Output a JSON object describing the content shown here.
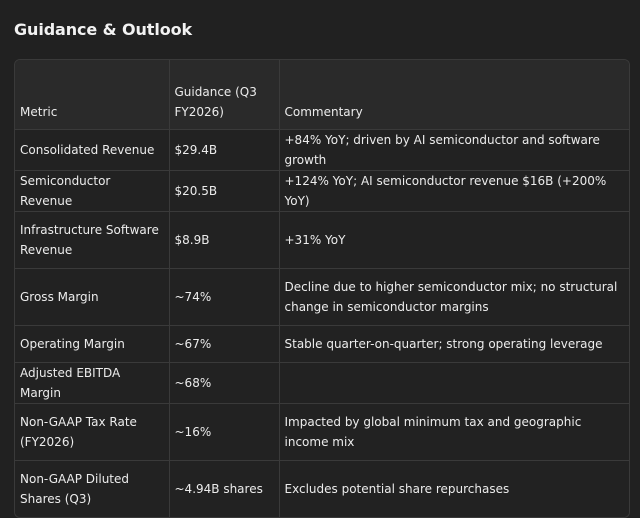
{
  "title": "Guidance & Outlook",
  "table": {
    "headers": [
      "Metric",
      "Guidance (Q3 FY2026)",
      "Commentary"
    ],
    "rows": [
      {
        "metric": "Consolidated Revenue",
        "guidance": "$29.4B",
        "commentary": "+84% YoY; driven by AI semiconductor and software growth"
      },
      {
        "metric": "Semiconductor Revenue",
        "guidance": "$20.5B",
        "commentary": "+124% YoY; AI semiconductor revenue $16B (+200% YoY)"
      },
      {
        "metric": "Infrastructure Software Revenue",
        "guidance": "$8.9B",
        "commentary": "+31% YoY"
      },
      {
        "metric": "Gross Margin",
        "guidance": "~74%",
        "commentary": "Decline due to higher semiconductor mix; no structural change in semiconductor margins"
      },
      {
        "metric": "Operating Margin",
        "guidance": "~67%",
        "commentary": "Stable quarter-on-quarter; strong operating leverage"
      },
      {
        "metric": "Adjusted EBITDA Margin",
        "guidance": "~68%",
        "commentary": ""
      },
      {
        "metric": "Non-GAAP Tax Rate (FY2026)",
        "guidance": "~16%",
        "commentary": "Impacted by global minimum tax and geographic income mix"
      },
      {
        "metric": "Non-GAAP Diluted Shares (Q3)",
        "guidance": "~4.94B shares",
        "commentary": "Excludes potential share repurchases"
      }
    ]
  }
}
